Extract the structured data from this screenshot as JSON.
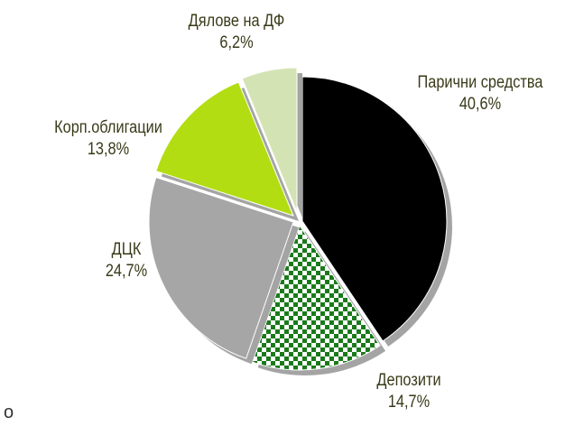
{
  "chart_data": {
    "type": "pie",
    "title": "",
    "start_angle_deg": 90,
    "direction": "clockwise",
    "slices": [
      {
        "label": "Парични средства",
        "value": 40.6,
        "value_label": "40,6%",
        "fill": "#000000",
        "pattern": "solid"
      },
      {
        "label": "Депозити",
        "value": 14.7,
        "value_label": "14,7%",
        "fill": "#1a7a1a",
        "pattern": "checker"
      },
      {
        "label": "ДЦК",
        "value": 24.7,
        "value_label": "24,7%",
        "fill": "#a6a6a6",
        "pattern": "solid"
      },
      {
        "label": "Корп.облигации",
        "value": 13.8,
        "value_label": "13,8%",
        "fill": "#b2dd12",
        "pattern": "solid"
      },
      {
        "label": "Дялове на ДФ",
        "value": 6.2,
        "value_label": "6,2%",
        "fill": "#d4e3b4",
        "pattern": "solid"
      }
    ],
    "legend": "none",
    "grid": false
  },
  "stray_text": "o"
}
